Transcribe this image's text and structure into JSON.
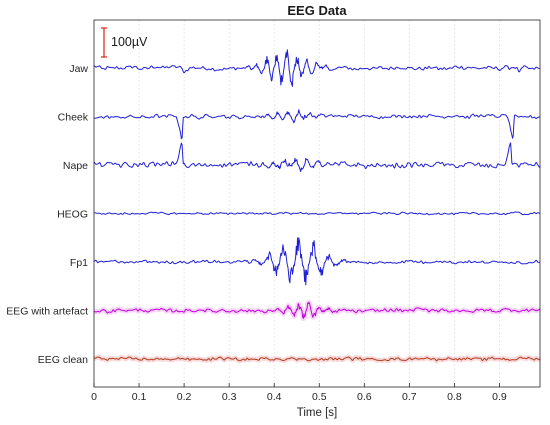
{
  "chart_data": {
    "type": "line",
    "title": "EEG Data",
    "xlabel": "Time [s]",
    "xlim": [
      0,
      0.99
    ],
    "x_ticks": [
      "0",
      "0.1",
      "0.2",
      "0.3",
      "0.4",
      "0.5",
      "0.6",
      "0.7",
      "0.8",
      "0.9"
    ],
    "x_grid": true,
    "scale_bar": {
      "label": "100µV",
      "value_uv": 100,
      "color": "#e0302a"
    },
    "series": [
      {
        "name": "Jaw",
        "color": "#1f1fd6",
        "noise_uv": 7,
        "features": [
          {
            "kind": "burst",
            "t": 0.43,
            "width": 0.055,
            "amp_uv": 75,
            "freq_hz": 45
          },
          {
            "kind": "dip",
            "t": 0.2,
            "width": 0.006,
            "amp_uv": -14
          },
          {
            "kind": "dip",
            "t": 0.945,
            "width": 0.006,
            "amp_uv": -14
          }
        ]
      },
      {
        "name": "Cheek",
        "color": "#1f1fd6",
        "noise_uv": 6,
        "features": [
          {
            "kind": "burst",
            "t": 0.44,
            "width": 0.05,
            "amp_uv": 24,
            "freq_hz": 42
          },
          {
            "kind": "spike",
            "t": 0.195,
            "amp_uv": -85
          },
          {
            "kind": "spike",
            "t": 0.93,
            "amp_uv": -80
          }
        ]
      },
      {
        "name": "Nape",
        "color": "#1f1fd6",
        "noise_uv": 9,
        "features": [
          {
            "kind": "burst",
            "t": 0.45,
            "width": 0.06,
            "amp_uv": 22,
            "freq_hz": 40
          },
          {
            "kind": "spike",
            "t": 0.195,
            "amp_uv": 85
          },
          {
            "kind": "spike",
            "t": 0.925,
            "amp_uv": 80
          }
        ]
      },
      {
        "name": "HEOG",
        "color": "#1f1fd6",
        "noise_uv": 3.5,
        "features": []
      },
      {
        "name": "Fp1",
        "color": "#1f1fd6",
        "noise_uv": 5,
        "features": [
          {
            "kind": "burst",
            "t": 0.455,
            "width": 0.07,
            "amp_uv": 95,
            "freq_hz": 30
          }
        ]
      },
      {
        "name": "EEG with artefact",
        "color": "#c000d8",
        "glow": "#f2b4f5",
        "noise_uv": 6,
        "features": [
          {
            "kind": "burst",
            "t": 0.47,
            "width": 0.05,
            "amp_uv": 32,
            "freq_hz": 45
          }
        ]
      },
      {
        "name": "EEG clean",
        "color": "#b03a1a",
        "glow": "#f4bcc0",
        "noise_uv": 5,
        "features": []
      }
    ]
  }
}
